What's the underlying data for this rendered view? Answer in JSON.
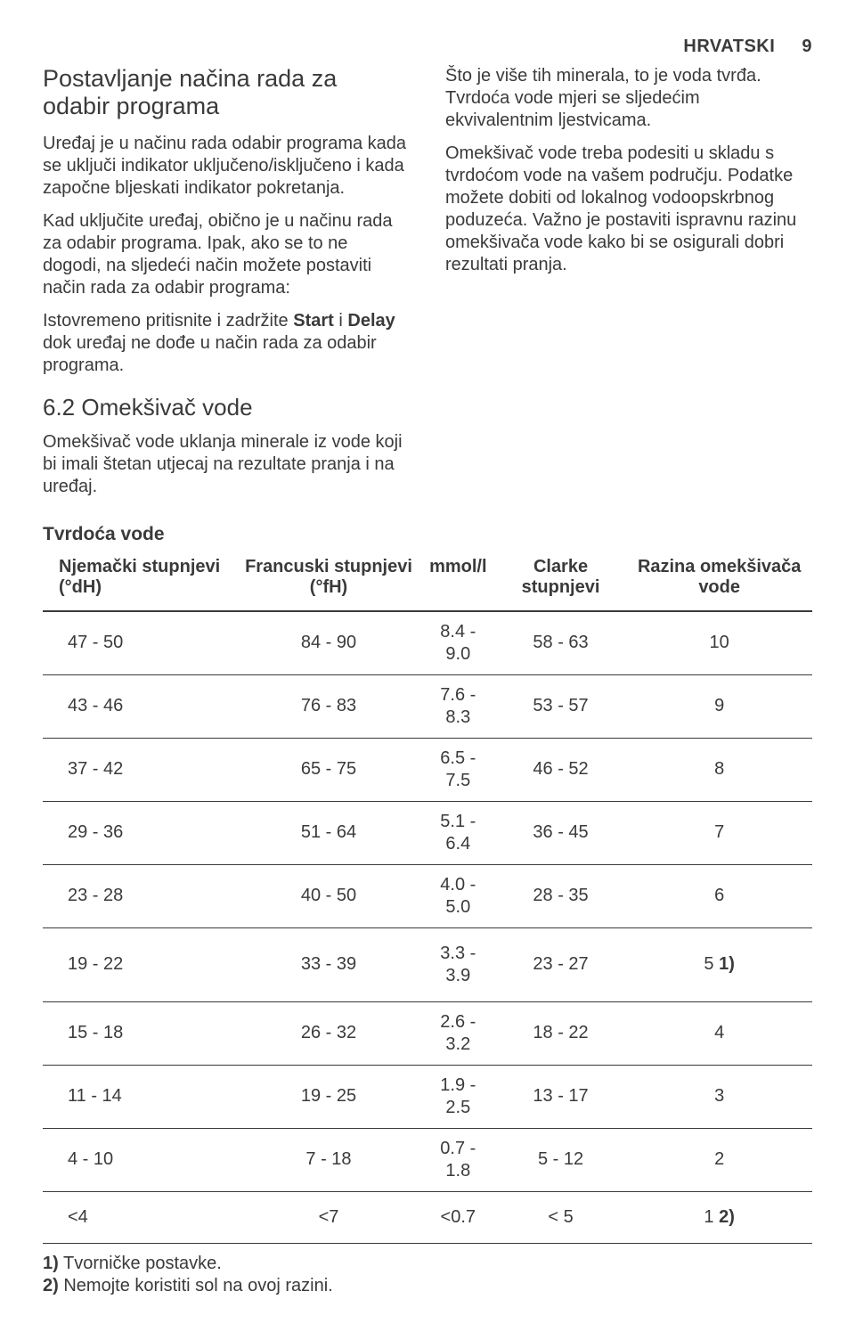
{
  "header": {
    "lang": "HRVATSKI",
    "page": "9"
  },
  "left": {
    "title": "Postavljanje načina rada za odabir programa",
    "p1": "Uređaj je u načinu rada odabir programa kada se uključi indikator uključeno/isključeno i kada započne bljeskati indikator pokretanja.",
    "p2": "Kad uključite uređaj, obično je u načinu rada za odabir programa. Ipak, ako se to ne dogodi, na sljedeći način možete postaviti način rada za odabir programa:",
    "p3a": "Istovremeno pritisnite i zadržite ",
    "p3b_bold": "Start",
    "p3c": " i ",
    "p3d_bold": "Delay",
    "p3e": " dok uređaj ne dođe u način rada za odabir programa.",
    "h62": "6.2 Omekšivač vode",
    "p4": "Omekšivač vode uklanja minerale iz vode koji bi imali štetan utjecaj na rezultate pranja i na uređaj."
  },
  "right": {
    "p1": "Što je više tih minerala, to je voda tvrđa. Tvrdoća vode mjeri se sljedećim ekvivalentnim ljestvicama.",
    "p2": "Omekšivač vode treba podesiti u skladu s tvrdoćom vode na vašem području. Podatke možete dobiti od lokalnog vodoopskrbnog poduzeća. Važno je postaviti ispravnu razinu omekšivača vode kako bi se osigurali dobri rezultati pranja."
  },
  "table": {
    "title": "Tvrdoća vode",
    "columns": [
      "Njemački stupnjevi (°dH)",
      "Francuski stupnjevi (°fH)",
      "mmol/l",
      "Clarke stupnjevi",
      "Razina omekšiva­ča vode"
    ],
    "rows": [
      {
        "c": [
          "47 - 50",
          "84 - 90",
          "8.4 - 9.0",
          "58 - 63",
          "10"
        ],
        "note": ""
      },
      {
        "c": [
          "43 - 46",
          "76 - 83",
          "7.6 - 8.3",
          "53 - 57",
          "9"
        ],
        "note": ""
      },
      {
        "c": [
          "37 - 42",
          "65 - 75",
          "6.5 - 7.5",
          "46 - 52",
          "8"
        ],
        "note": ""
      },
      {
        "c": [
          "29 - 36",
          "51 - 64",
          "5.1 - 6.4",
          "36 - 45",
          "7"
        ],
        "note": ""
      },
      {
        "c": [
          "23 - 28",
          "40 - 50",
          "4.0 - 5.0",
          "28 - 35",
          "6"
        ],
        "note": ""
      },
      {
        "c": [
          "19 - 22",
          "33 - 39",
          "3.3 - 3.9",
          "23 - 27",
          "5"
        ],
        "note": "1)",
        "spaced": true
      },
      {
        "c": [
          "15 - 18",
          "26 - 32",
          "2.6 - 3.2",
          "18 - 22",
          "4"
        ],
        "note": ""
      },
      {
        "c": [
          "11 - 14",
          "19 - 25",
          "1.9 - 2.5",
          "13 - 17",
          "3"
        ],
        "note": ""
      },
      {
        "c": [
          "4 - 10",
          "7 - 18",
          "0.7 - 1.8",
          "5 - 12",
          "2"
        ],
        "note": ""
      },
      {
        "c": [
          "<4",
          "<7",
          "<0.7",
          "< 5",
          "1"
        ],
        "note": "2)",
        "spaced": true
      }
    ]
  },
  "footnotes": {
    "f1idx": "1)",
    "f1": " Tvorničke postavke.",
    "f2idx": "2)",
    "f2": " Nemojte koristiti sol na ovoj razini."
  }
}
